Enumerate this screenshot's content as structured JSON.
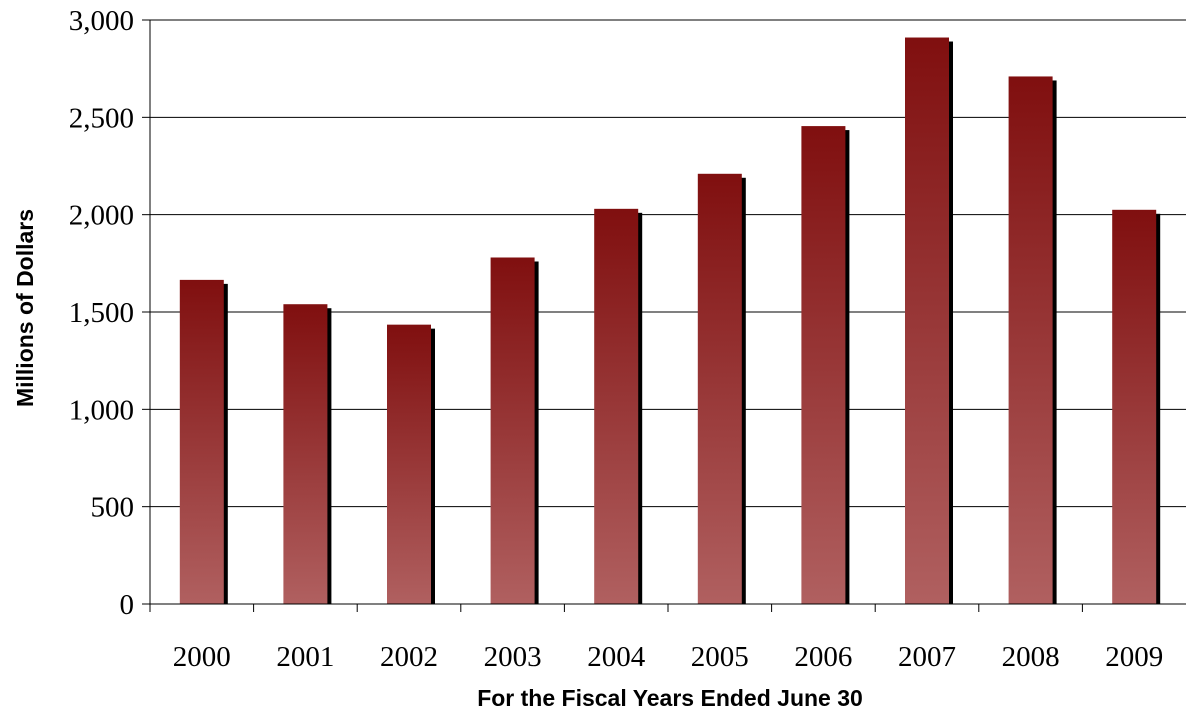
{
  "chart_data": {
    "type": "bar",
    "title": "",
    "xlabel": "For the Fiscal Years Ended June 30",
    "ylabel": "Millions of Dollars",
    "categories": [
      "2000",
      "2001",
      "2002",
      "2003",
      "2004",
      "2005",
      "2006",
      "2007",
      "2008",
      "2009"
    ],
    "values": [
      1665,
      1540,
      1435,
      1780,
      2030,
      2210,
      2455,
      2910,
      2710,
      2025
    ],
    "ylim": [
      0,
      3000
    ],
    "yticks": [
      0,
      500,
      1000,
      1500,
      2000,
      2500,
      3000
    ],
    "ytick_labels": [
      "0",
      "500",
      "1,000",
      "1,500",
      "2,000",
      "2,500",
      "3,000"
    ],
    "grid": true,
    "legend": "none",
    "bar_color_top": "#800f0f",
    "bar_color_bottom": "#b06060",
    "shadow_color": "#000000",
    "gridline_color": "#000000"
  }
}
